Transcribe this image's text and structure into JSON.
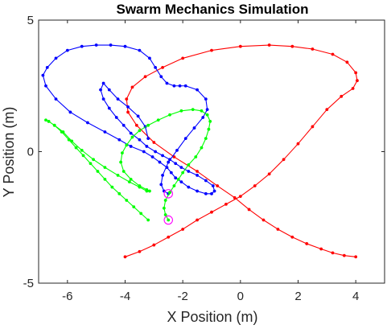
{
  "chart_data": {
    "type": "line",
    "title": "Swarm Mechanics Simulation",
    "xlabel": "X Position (m)",
    "ylabel": "Y Position (m)",
    "xlim": [
      -7,
      5
    ],
    "ylim": [
      -5,
      5
    ],
    "x_ticks": [
      -6,
      -4,
      -2,
      0,
      2,
      4
    ],
    "y_ticks": [
      -5,
      0,
      5
    ],
    "x_tick_labels": [
      "-6",
      "-4",
      "-2",
      "0",
      "2",
      "4"
    ],
    "y_tick_labels": [
      "-5",
      "0",
      "5"
    ],
    "grid": false,
    "series": [
      {
        "color": "#ff0000",
        "marker": "dot",
        "x": [
          -4.0,
          -3.5,
          -3.0,
          -2.5,
          -2.0,
          -1.5,
          -1.0,
          -0.5,
          0.0,
          0.5,
          1.0,
          1.5,
          2.0,
          2.5,
          3.0,
          3.5,
          3.9,
          4.05,
          4.0,
          3.7,
          3.2,
          2.5,
          1.8,
          1.0,
          0.0,
          -1.0,
          -2.0,
          -2.7,
          -3.3,
          -3.75,
          -3.95,
          -3.9,
          -3.6,
          -3.0,
          -2.3,
          -1.5,
          -0.8,
          -0.2,
          0.3,
          0.8,
          1.3,
          1.8,
          2.3,
          2.8,
          3.2,
          3.6,
          4.0
        ],
        "y": [
          -4.0,
          -3.8,
          -3.55,
          -3.25,
          -2.95,
          -2.6,
          -2.3,
          -2.0,
          -1.7,
          -1.3,
          -0.85,
          -0.3,
          0.3,
          0.95,
          1.6,
          2.1,
          2.4,
          2.7,
          3.0,
          3.4,
          3.7,
          3.9,
          4.0,
          4.05,
          4.0,
          3.85,
          3.55,
          3.2,
          2.85,
          2.45,
          2.0,
          1.5,
          1.0,
          0.35,
          -0.2,
          -0.75,
          -1.3,
          -1.75,
          -2.2,
          -2.6,
          -2.95,
          -3.25,
          -3.5,
          -3.7,
          -3.85,
          -3.95,
          -4.0
        ]
      },
      {
        "color": "#0000ff",
        "marker": "dot",
        "x": [
          -2.5,
          -2.65,
          -2.75,
          -2.7,
          -2.5,
          -2.2,
          -1.9,
          -1.6,
          -1.3,
          -1.15,
          -1.2,
          -1.5,
          -1.9,
          -2.1,
          -2.3,
          -2.55,
          -2.75,
          -2.95,
          -3.15,
          -3.5,
          -4.0,
          -4.5,
          -5.0,
          -5.5,
          -6.0,
          -6.4,
          -6.7,
          -6.85,
          -6.75,
          -6.4,
          -5.9,
          -5.3,
          -4.7,
          -4.2,
          -3.8,
          -3.35,
          -3.05,
          -2.8,
          -2.55,
          -2.4,
          -2.25,
          -2.05,
          -1.8,
          -1.5,
          -1.2,
          -1.0,
          -0.9,
          -0.95,
          -1.2,
          -1.5,
          -1.8,
          -2.05,
          -2.25,
          -2.45,
          -2.7,
          -2.95,
          -3.25,
          -3.5,
          -3.8,
          -4.05,
          -4.3,
          -4.55,
          -4.75,
          -4.85,
          -4.75,
          -4.55,
          -4.25,
          -3.9,
          -3.55,
          -3.3,
          -3.2
        ],
        "y": [
          -1.6,
          -1.5,
          -1.25,
          -0.9,
          -0.4,
          0.05,
          0.5,
          0.9,
          1.3,
          1.6,
          2.0,
          2.35,
          2.5,
          2.5,
          2.5,
          2.6,
          2.85,
          3.2,
          3.55,
          3.85,
          4.0,
          4.05,
          4.05,
          4.0,
          3.85,
          3.55,
          3.2,
          2.9,
          2.5,
          2.0,
          1.5,
          1.1,
          0.75,
          0.45,
          0.2,
          0.0,
          -0.2,
          -0.4,
          -0.6,
          -0.8,
          -1.0,
          -1.15,
          -1.35,
          -1.5,
          -1.6,
          -1.6,
          -1.5,
          -1.3,
          -1.1,
          -0.9,
          -0.75,
          -0.6,
          -0.45,
          -0.3,
          -0.15,
          0.0,
          0.2,
          0.45,
          0.7,
          1.0,
          1.3,
          1.65,
          2.0,
          2.35,
          2.6,
          2.35,
          2.0,
          1.7,
          1.35,
          0.95,
          0.5
        ]
      },
      {
        "color": "#00ff00",
        "marker": "dot",
        "x": [
          -2.5,
          -2.6,
          -2.65,
          -2.6,
          -2.45,
          -2.3,
          -2.15,
          -2.0,
          -1.8,
          -1.55,
          -1.35,
          -1.2,
          -1.1,
          -1.05,
          -1.15,
          -1.35,
          -1.65,
          -2.05,
          -2.45,
          -2.85,
          -3.2,
          -3.5,
          -3.75,
          -3.95,
          -4.1,
          -4.15,
          -4.05,
          -3.8,
          -3.5,
          -3.25,
          -3.15,
          -3.25,
          -3.5,
          -3.85,
          -4.25,
          -4.7,
          -5.1,
          -5.5,
          -5.85,
          -6.15,
          -6.45,
          -6.65,
          -6.75,
          -6.65,
          -6.45,
          -6.2,
          -5.95,
          -5.7,
          -5.45,
          -5.2,
          -4.95,
          -4.7,
          -4.45,
          -4.2,
          -3.95,
          -3.7,
          -3.45,
          -3.2
        ],
        "y": [
          -2.6,
          -2.4,
          -2.15,
          -1.85,
          -1.55,
          -1.3,
          -1.05,
          -0.8,
          -0.5,
          -0.2,
          0.15,
          0.5,
          0.85,
          1.15,
          1.4,
          1.55,
          1.6,
          1.55,
          1.4,
          1.2,
          1.0,
          0.8,
          0.55,
          0.25,
          -0.05,
          -0.4,
          -0.75,
          -1.05,
          -1.3,
          -1.45,
          -1.5,
          -1.5,
          -1.35,
          -1.15,
          -0.9,
          -0.6,
          -0.3,
          0.05,
          0.4,
          0.75,
          1.0,
          1.15,
          1.2,
          1.15,
          1.0,
          0.75,
          0.45,
          0.15,
          -0.15,
          -0.45,
          -0.75,
          -1.05,
          -1.35,
          -1.6,
          -1.85,
          -2.1,
          -2.35,
          -2.6
        ]
      }
    ],
    "agents": [
      {
        "color": "#ff00ff",
        "x": -2.5,
        "y": -1.6
      },
      {
        "color": "#ff00ff",
        "x": -2.5,
        "y": -2.6
      }
    ]
  }
}
